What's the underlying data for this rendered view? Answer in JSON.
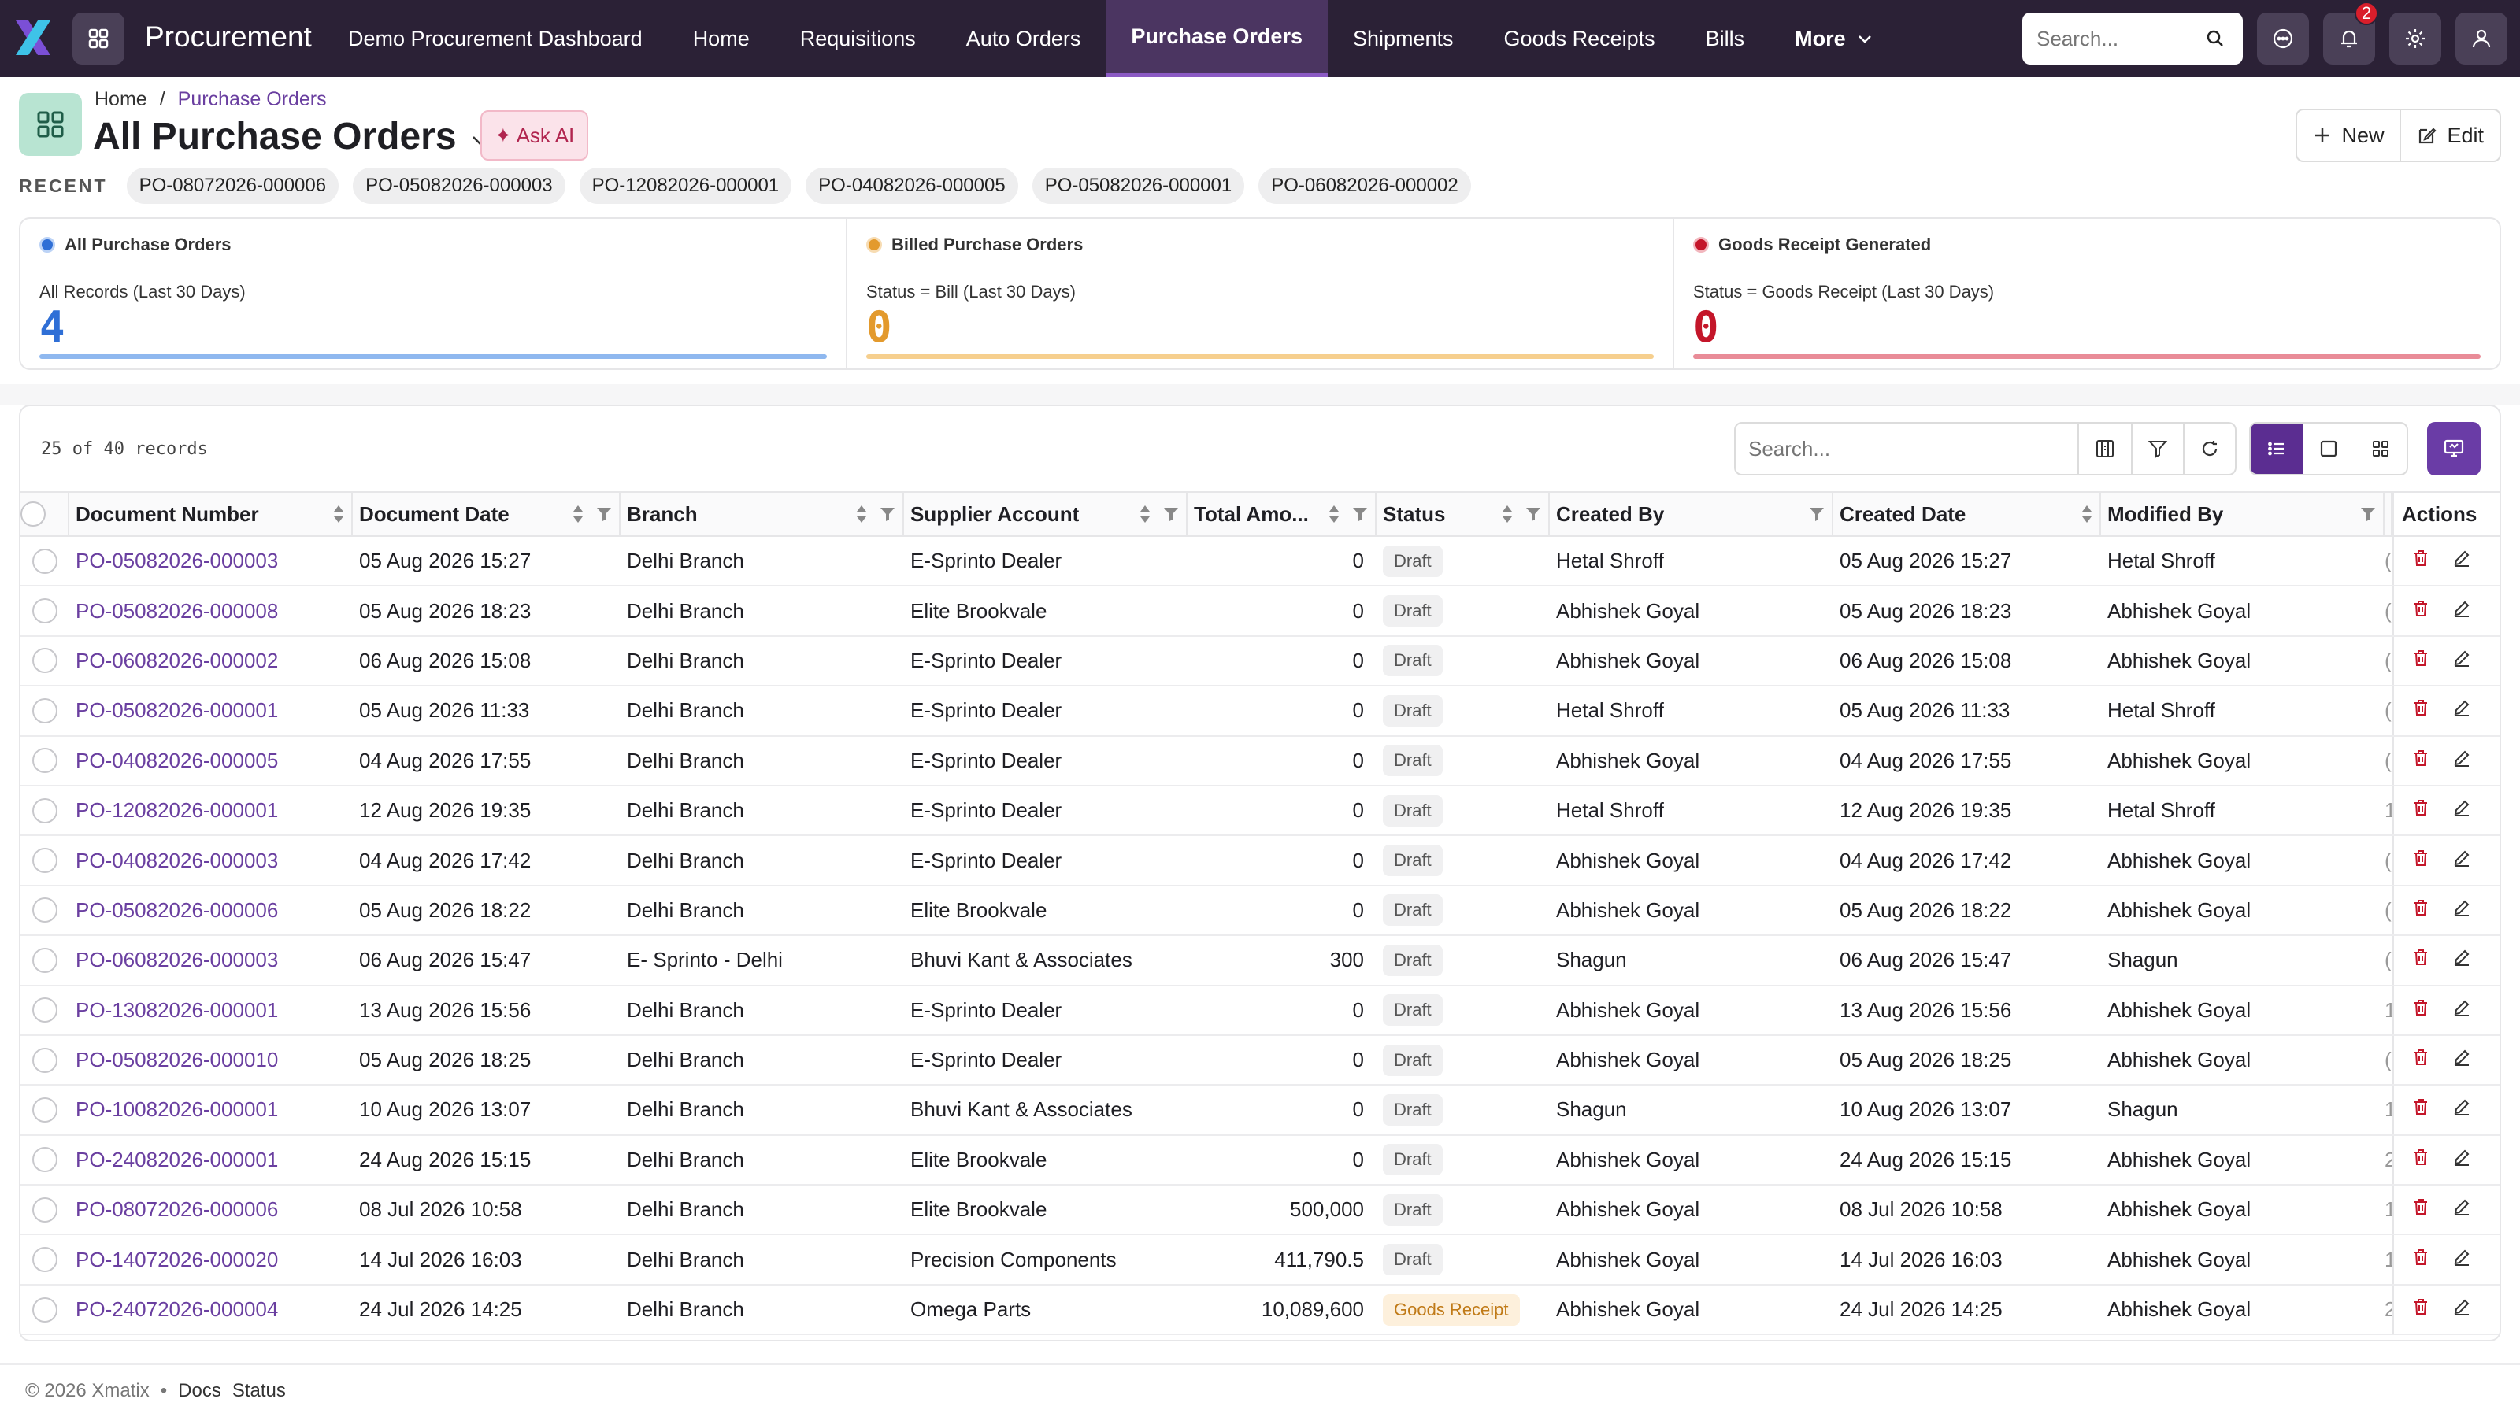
{
  "app": {
    "title": "Procurement",
    "brand_color": "#2b2136",
    "accent_color": "#6a3fa0"
  },
  "nav": {
    "links": [
      {
        "label": "Demo Procurement Dashboard",
        "active": false
      },
      {
        "label": "Home",
        "active": false
      },
      {
        "label": "Requisitions",
        "active": false
      },
      {
        "label": "Auto Orders",
        "active": false
      },
      {
        "label": "Purchase Orders",
        "active": true
      },
      {
        "label": "Shipments",
        "active": false
      },
      {
        "label": "Goods Receipts",
        "active": false
      },
      {
        "label": "Bills",
        "active": false
      }
    ],
    "more_label": "More",
    "search_placeholder": "Search...",
    "notification_count": "2",
    "icons": [
      "grid-icon",
      "search-icon",
      "chat-icon",
      "bell-icon",
      "gear-icon",
      "user-icon"
    ]
  },
  "header": {
    "breadcrumb": {
      "home": "Home",
      "current": "Purchase Orders"
    },
    "title": "All Purchase Orders",
    "ask_ai_label": "✦ Ask AI",
    "new_label": "New",
    "edit_label": "Edit"
  },
  "recent": {
    "label": "RECENT",
    "items": [
      "PO-08072026-000006",
      "PO-05082026-000003",
      "PO-12082026-000001",
      "PO-04082026-000005",
      "PO-05082026-000001",
      "PO-06082026-000002"
    ]
  },
  "stats": [
    {
      "title": "All Purchase Orders",
      "subtitle": "All Records (Last 30 Days)",
      "value": "4",
      "color": "#2f6fd6"
    },
    {
      "title": "Billed Purchase Orders",
      "subtitle": "Status = Bill (Last 30 Days)",
      "value": "0",
      "color": "#e39a2d"
    },
    {
      "title": "Goods Receipt Generated",
      "subtitle": "Status = Goods Receipt (Last 30 Days)",
      "value": "0",
      "color": "#c4162a"
    }
  ],
  "table": {
    "record_count": "25 of 40 records",
    "search_placeholder": "Search...",
    "columns": [
      "Document Number",
      "Document Date",
      "Branch",
      "Supplier Account",
      "Total Amo...",
      "Status",
      "Created By",
      "Created Date",
      "Modified By",
      "Actions"
    ],
    "rows": [
      {
        "doc": "PO-05082026-000003",
        "date": "05 Aug 2026 15:27",
        "branch": "Delhi Branch",
        "supplier": "E-Sprinto Dealer",
        "amount": "0",
        "status": "Draft",
        "created_by": "Hetal Shroff",
        "created_date": "05 Aug 2026 15:27",
        "modified_by": "Hetal Shroff",
        "extra": "("
      },
      {
        "doc": "PO-05082026-000008",
        "date": "05 Aug 2026 18:23",
        "branch": "Delhi Branch",
        "supplier": "Elite Brookvale",
        "amount": "0",
        "status": "Draft",
        "created_by": "Abhishek Goyal",
        "created_date": "05 Aug 2026 18:23",
        "modified_by": "Abhishek Goyal",
        "extra": "("
      },
      {
        "doc": "PO-06082026-000002",
        "date": "06 Aug 2026 15:08",
        "branch": "Delhi Branch",
        "supplier": "E-Sprinto Dealer",
        "amount": "0",
        "status": "Draft",
        "created_by": "Abhishek Goyal",
        "created_date": "06 Aug 2026 15:08",
        "modified_by": "Abhishek Goyal",
        "extra": "("
      },
      {
        "doc": "PO-05082026-000001",
        "date": "05 Aug 2026 11:33",
        "branch": "Delhi Branch",
        "supplier": "E-Sprinto Dealer",
        "amount": "0",
        "status": "Draft",
        "created_by": "Hetal Shroff",
        "created_date": "05 Aug 2026 11:33",
        "modified_by": "Hetal Shroff",
        "extra": "("
      },
      {
        "doc": "PO-04082026-000005",
        "date": "04 Aug 2026 17:55",
        "branch": "Delhi Branch",
        "supplier": "E-Sprinto Dealer",
        "amount": "0",
        "status": "Draft",
        "created_by": "Abhishek Goyal",
        "created_date": "04 Aug 2026 17:55",
        "modified_by": "Abhishek Goyal",
        "extra": "("
      },
      {
        "doc": "PO-12082026-000001",
        "date": "12 Aug 2026 19:35",
        "branch": "Delhi Branch",
        "supplier": "E-Sprinto Dealer",
        "amount": "0",
        "status": "Draft",
        "created_by": "Hetal Shroff",
        "created_date": "12 Aug 2026 19:35",
        "modified_by": "Hetal Shroff",
        "extra": "1"
      },
      {
        "doc": "PO-04082026-000003",
        "date": "04 Aug 2026 17:42",
        "branch": "Delhi Branch",
        "supplier": "E-Sprinto Dealer",
        "amount": "0",
        "status": "Draft",
        "created_by": "Abhishek Goyal",
        "created_date": "04 Aug 2026 17:42",
        "modified_by": "Abhishek Goyal",
        "extra": "("
      },
      {
        "doc": "PO-05082026-000006",
        "date": "05 Aug 2026 18:22",
        "branch": "Delhi Branch",
        "supplier": "Elite Brookvale",
        "amount": "0",
        "status": "Draft",
        "created_by": "Abhishek Goyal",
        "created_date": "05 Aug 2026 18:22",
        "modified_by": "Abhishek Goyal",
        "extra": "("
      },
      {
        "doc": "PO-06082026-000003",
        "date": "06 Aug 2026 15:47",
        "branch": "E- Sprinto - Delhi",
        "supplier": "Bhuvi Kant & Associates",
        "amount": "300",
        "status": "Draft",
        "created_by": "Shagun",
        "created_date": "06 Aug 2026 15:47",
        "modified_by": "Shagun",
        "extra": "("
      },
      {
        "doc": "PO-13082026-000001",
        "date": "13 Aug 2026 15:56",
        "branch": "Delhi Branch",
        "supplier": "E-Sprinto Dealer",
        "amount": "0",
        "status": "Draft",
        "created_by": "Abhishek Goyal",
        "created_date": "13 Aug 2026 15:56",
        "modified_by": "Abhishek Goyal",
        "extra": "1"
      },
      {
        "doc": "PO-05082026-000010",
        "date": "05 Aug 2026 18:25",
        "branch": "Delhi Branch",
        "supplier": "E-Sprinto Dealer",
        "amount": "0",
        "status": "Draft",
        "created_by": "Abhishek Goyal",
        "created_date": "05 Aug 2026 18:25",
        "modified_by": "Abhishek Goyal",
        "extra": "("
      },
      {
        "doc": "PO-10082026-000001",
        "date": "10 Aug 2026 13:07",
        "branch": "Delhi Branch",
        "supplier": "Bhuvi Kant & Associates",
        "amount": "0",
        "status": "Draft",
        "created_by": "Shagun",
        "created_date": "10 Aug 2026 13:07",
        "modified_by": "Shagun",
        "extra": "1"
      },
      {
        "doc": "PO-24082026-000001",
        "date": "24 Aug 2026 15:15",
        "branch": "Delhi Branch",
        "supplier": "Elite Brookvale",
        "amount": "0",
        "status": "Draft",
        "created_by": "Abhishek Goyal",
        "created_date": "24 Aug 2026 15:15",
        "modified_by": "Abhishek Goyal",
        "extra": "2"
      },
      {
        "doc": "PO-08072026-000006",
        "date": "08 Jul 2026 10:58",
        "branch": "Delhi Branch",
        "supplier": "Elite Brookvale",
        "amount": "500,000",
        "status": "Draft",
        "created_by": "Abhishek Goyal",
        "created_date": "08 Jul 2026 10:58",
        "modified_by": "Abhishek Goyal",
        "extra": "1"
      },
      {
        "doc": "PO-14072026-000020",
        "date": "14 Jul 2026 16:03",
        "branch": "Delhi Branch",
        "supplier": "Precision Components",
        "amount": "411,790.5",
        "status": "Draft",
        "created_by": "Abhishek Goyal",
        "created_date": "14 Jul 2026 16:03",
        "modified_by": "Abhishek Goyal",
        "extra": "1"
      },
      {
        "doc": "PO-24072026-000004",
        "date": "24 Jul 2026 14:25",
        "branch": "Delhi Branch",
        "supplier": "Omega Parts",
        "amount": "10,089,600",
        "status": "Goods Receipt",
        "created_by": "Abhishek Goyal",
        "created_date": "24 Jul 2026 14:25",
        "modified_by": "Abhishek Goyal",
        "extra": "2"
      }
    ]
  },
  "footer": {
    "copyright": "© 2026 Xmatix",
    "separator": "•",
    "docs": "Docs",
    "status": "Status"
  }
}
